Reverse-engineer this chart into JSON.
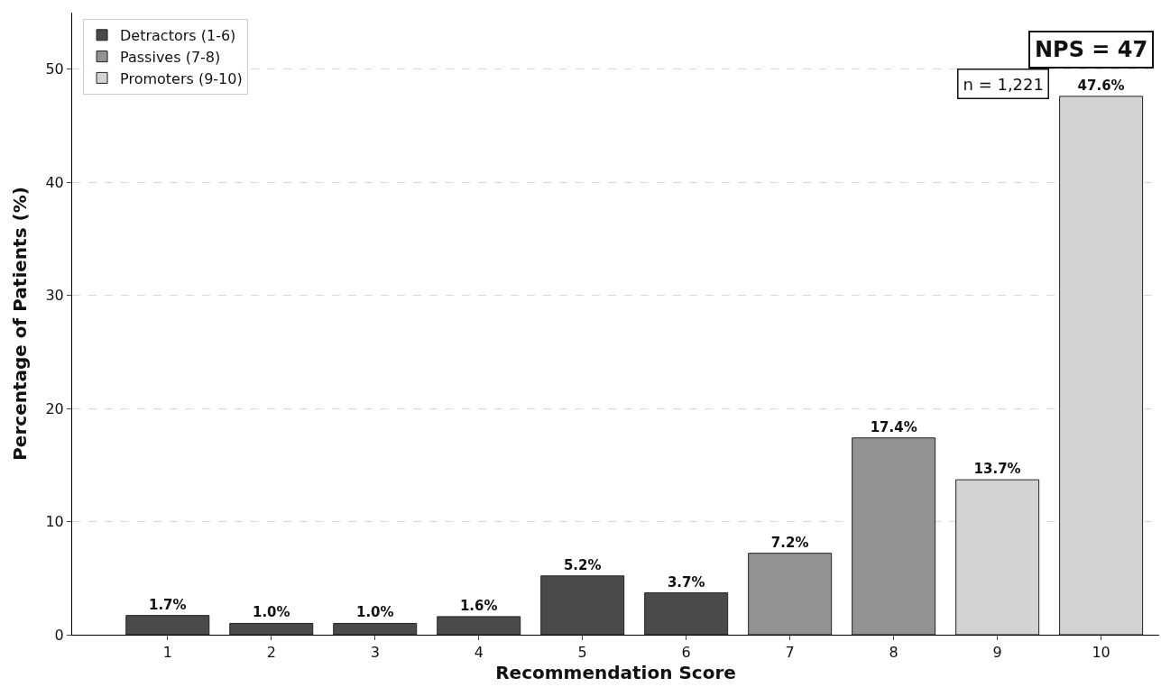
{
  "chart_data": {
    "type": "bar",
    "xlabel": "Recommendation Score",
    "ylabel": "Percentage of Patients (%)",
    "categories": [
      "1",
      "2",
      "3",
      "4",
      "5",
      "6",
      "7",
      "8",
      "9",
      "10"
    ],
    "series": [
      {
        "name": "Detractors (1-6)",
        "color": "#4a4a4a",
        "values": [
          1.7,
          1.0,
          1.0,
          1.6,
          5.2,
          3.7,
          null,
          null,
          null,
          null
        ],
        "value_labels": [
          "1.7%",
          "1.0%",
          "1.0%",
          "1.6%",
          "5.2%",
          "3.7%",
          null,
          null,
          null,
          null
        ]
      },
      {
        "name": "Passives (7-8)",
        "color": "#939393",
        "values": [
          null,
          null,
          null,
          null,
          null,
          null,
          7.2,
          17.4,
          null,
          null
        ],
        "value_labels": [
          null,
          null,
          null,
          null,
          null,
          null,
          "7.2%",
          "17.4%",
          null,
          null
        ]
      },
      {
        "name": "Promoters (9-10)",
        "color": "#d3d3d3",
        "values": [
          null,
          null,
          null,
          null,
          null,
          null,
          null,
          null,
          13.7,
          47.6
        ],
        "value_labels": [
          null,
          null,
          null,
          null,
          null,
          null,
          null,
          null,
          "13.7%",
          "47.6%"
        ]
      }
    ],
    "ylim": [
      0,
      55
    ],
    "yticks": [
      0,
      10,
      20,
      30,
      40,
      50
    ],
    "grid": "y",
    "legend": "top left",
    "annotations": [
      "NPS = 47",
      "n = 1,221"
    ]
  }
}
